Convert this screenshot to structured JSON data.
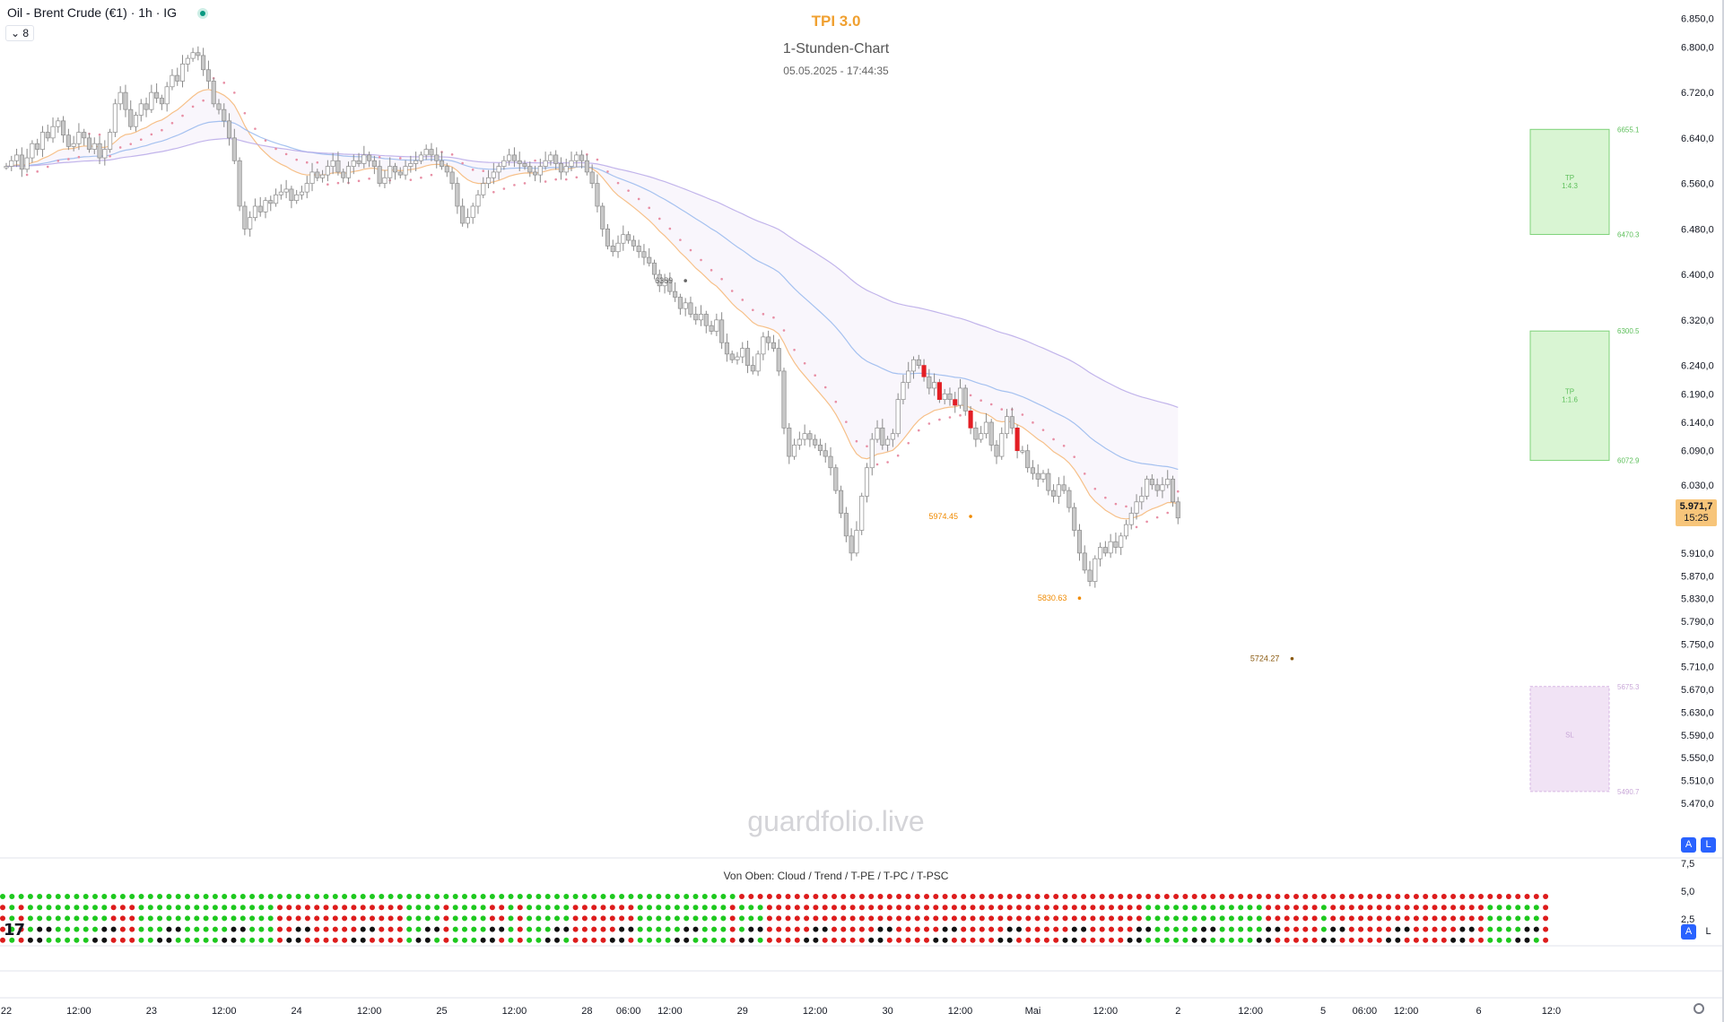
{
  "header": {
    "symbol": "Oil - Brent Crude (€1) · 1h · IG",
    "collapse_label": "⌄ 8",
    "indicator_title": "TPI 3.0",
    "subtitle": "1-Stunden-Chart",
    "datetime": "05.05.2025 - 17:44:35",
    "watermark": "guardfolio.live",
    "pane_title": "Von Oben: Cloud / Trend / T-PE / T-PC / T-PSC",
    "last_price": "5.971,7",
    "countdown": "15:25",
    "btn_auto": "A",
    "btn_log": "L"
  },
  "colors": {
    "bull": "#ffffff",
    "bear": "#c8c8c8",
    "signal_bear": "#e31e24",
    "ema_orange": "#f5b26b",
    "ema_blue": "#90b4ec",
    "ema_purple": "#b3a2e6",
    "trail": "#e88fa5",
    "tp_zone": "#d9f5d3",
    "sl_zone": "#f1e3f5",
    "dot_green": "#1ec81e",
    "dot_red": "#dd1c1c",
    "dot_black": "#111111"
  },
  "chart_data": {
    "type": "candlestick",
    "ylim": [
      5440,
      6870
    ],
    "y_ticks": [
      6850,
      6800,
      6720,
      6640,
      6560,
      6480,
      6400,
      6320,
      6240,
      6190,
      6140,
      6090,
      6030,
      5970,
      5910,
      5870,
      5830,
      5790,
      5750,
      5710,
      5670,
      5630,
      5590,
      5550,
      5510,
      5470
    ],
    "y_tick_labels": [
      "6.850,0",
      "6.800,0",
      "6.720,0",
      "6.640,0",
      "6.560,0",
      "6.480,0",
      "6.400,0",
      "6.320,0",
      "6.240,0",
      "6.190,0",
      "6.140,0",
      "6.090,0",
      "6.030,0",
      "5.970,0",
      "5.910,0",
      "5.870,0",
      "5.830,0",
      "5.790,0",
      "5.750,0",
      "5.710,0",
      "5.670,0",
      "5.630,0",
      "5.590,0",
      "5.550,0",
      "5.510,0",
      "5.470,0"
    ],
    "x_labels": [
      {
        "i": 0,
        "t": "22"
      },
      {
        "i": 14,
        "t": "12:00"
      },
      {
        "i": 28,
        "t": "23"
      },
      {
        "i": 42,
        "t": "12:00"
      },
      {
        "i": 56,
        "t": "24"
      },
      {
        "i": 70,
        "t": "12:00"
      },
      {
        "i": 84,
        "t": "25"
      },
      {
        "i": 98,
        "t": "12:00"
      },
      {
        "i": 112,
        "t": "28"
      },
      {
        "i": 120,
        "t": "06:00"
      },
      {
        "i": 128,
        "t": "12:00"
      },
      {
        "i": 142,
        "t": "29"
      },
      {
        "i": 156,
        "t": "12:00"
      },
      {
        "i": 170,
        "t": "30"
      },
      {
        "i": 184,
        "t": "12:00"
      },
      {
        "i": 198,
        "t": "Mai"
      },
      {
        "i": 212,
        "t": "12:00"
      },
      {
        "i": 226,
        "t": "2"
      },
      {
        "i": 240,
        "t": "12:00"
      },
      {
        "i": 254,
        "t": "5"
      },
      {
        "i": 262,
        "t": "06:00"
      },
      {
        "i": 270,
        "t": "12:00"
      },
      {
        "i": 284,
        "t": "6"
      },
      {
        "i": 298,
        "t": "12:0"
      }
    ],
    "closes": [
      6590,
      6600,
      6610,
      6585,
      6605,
      6630,
      6620,
      6650,
      6640,
      6660,
      6670,
      6645,
      6625,
      6630,
      6650,
      6640,
      6620,
      6630,
      6605,
      6620,
      6650,
      6700,
      6720,
      6690,
      6660,
      6680,
      6700,
      6690,
      6720,
      6710,
      6700,
      6730,
      6750,
      6740,
      6770,
      6780,
      6790,
      6785,
      6760,
      6740,
      6700,
      6690,
      6670,
      6640,
      6600,
      6520,
      6480,
      6500,
      6520,
      6510,
      6530,
      6525,
      6540,
      6545,
      6550,
      6530,
      6540,
      6545,
      6560,
      6580,
      6570,
      6575,
      6590,
      6600,
      6580,
      6570,
      6590,
      6600,
      6595,
      6610,
      6600,
      6590,
      6560,
      6570,
      6590,
      6580,
      6575,
      6590,
      6595,
      6600,
      6610,
      6620,
      6610,
      6600,
      6590,
      6580,
      6560,
      6520,
      6490,
      6500,
      6520,
      6540,
      6560,
      6570,
      6580,
      6590,
      6600,
      6610,
      6600,
      6595,
      6590,
      6580,
      6575,
      6590,
      6600,
      6610,
      6595,
      6580,
      6590,
      6600,
      6610,
      6600,
      6580,
      6560,
      6520,
      6480,
      6450,
      6440,
      6455,
      6470,
      6460,
      6450,
      6440,
      6430,
      6420,
      6400,
      6380,
      6390,
      6370,
      6360,
      6340,
      6350,
      6330,
      6320,
      6330,
      6310,
      6300,
      6320,
      6280,
      6260,
      6250,
      6255,
      6270,
      6240,
      6230,
      6260,
      6290,
      6280,
      6270,
      6230,
      6130,
      6080,
      6100,
      6110,
      6120,
      6110,
      6100,
      6090,
      6080,
      6060,
      6020,
      5980,
      5940,
      5910,
      5950,
      6010,
      6060,
      6110,
      6130,
      6100,
      6110,
      6120,
      6180,
      6210,
      6230,
      6250,
      6240,
      6220,
      6200,
      6210,
      6180,
      6190,
      6180,
      6170,
      6200,
      6160,
      6130,
      6110,
      6120,
      6140,
      6100,
      6080,
      6120,
      6150,
      6130,
      6090,
      6090,
      6060,
      6050,
      6040,
      6050,
      6020,
      6010,
      6030,
      6020,
      5990,
      5950,
      5910,
      5880,
      5860,
      5900,
      5920,
      5910,
      5930,
      5920,
      5940,
      5960,
      5980,
      6000,
      6010,
      6040,
      6030,
      6020,
      6030,
      6040,
      6000,
      5971.7
    ],
    "markers": [
      {
        "text": "6389",
        "i": 131,
        "price": 6389
      },
      {
        "text": "5974.45",
        "i": 186,
        "price": 5974.45
      },
      {
        "text": "5830.63",
        "i": 207,
        "price": 5830.63
      },
      {
        "text": "5724.27",
        "i": 248,
        "price": 5724.27
      }
    ],
    "zones": [
      {
        "kind": "tp",
        "top": 6655.1,
        "bottom": 6470.3,
        "top_label": "6655.1",
        "bottom_label": "6470.3",
        "label1": "TP",
        "label2": "1:4.3"
      },
      {
        "kind": "tp",
        "top": 6300.5,
        "bottom": 6072.9,
        "top_label": "6300.5",
        "bottom_label": "6072.9",
        "label1": "TP",
        "label2": "1:1.6"
      },
      {
        "kind": "sl",
        "top": 5675.3,
        "bottom": 5490.7,
        "top_label": "5675.3",
        "bottom_label": "5490.7",
        "label1": "SL",
        "label2": ""
      }
    ],
    "pane_y_ticks": [
      "7,5",
      "5,0",
      "2,5"
    ],
    "pane_rows": 5
  }
}
